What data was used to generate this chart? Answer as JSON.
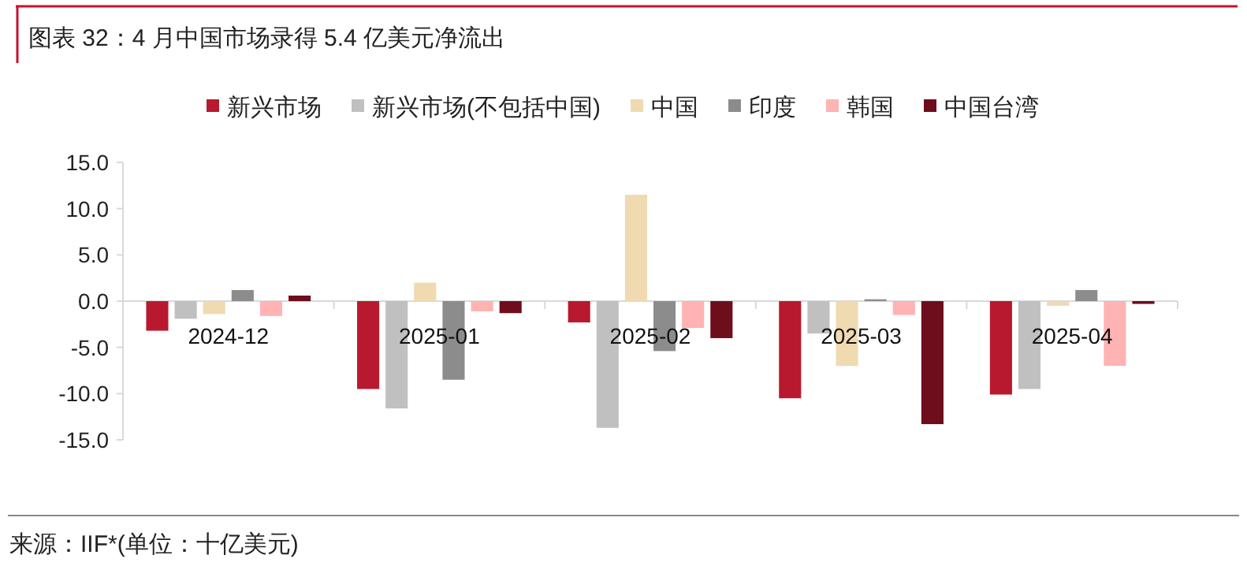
{
  "chart_data": {
    "type": "bar",
    "title": "图表 32：4 月中国市场录得 5.4 亿美元净流出",
    "categories": [
      "2024-12",
      "2025-01",
      "2025-02",
      "2025-03",
      "2025-04"
    ],
    "series": [
      {
        "name": "新兴市场",
        "color": "#b8192e",
        "values": [
          -3.2,
          -9.5,
          -2.3,
          -10.5,
          -10.1
        ]
      },
      {
        "name": "新兴市场(不包括中国)",
        "color": "#c0c0c0",
        "values": [
          -1.9,
          -11.6,
          -13.7,
          -3.5,
          -9.5
        ]
      },
      {
        "name": "中国",
        "color": "#f0dab0",
        "values": [
          -1.4,
          2.0,
          11.5,
          -7.0,
          -0.5
        ]
      },
      {
        "name": "印度",
        "color": "#8c8c8c",
        "values": [
          1.2,
          -8.5,
          -5.4,
          0.2,
          1.2
        ]
      },
      {
        "name": "韩国",
        "color": "#ffb3b3",
        "values": [
          -1.6,
          -1.1,
          -2.9,
          -1.5,
          -7.0
        ]
      },
      {
        "name": "中国台湾",
        "color": "#6e0d1c",
        "values": [
          0.6,
          -1.3,
          -4.0,
          -13.3,
          -0.3
        ]
      }
    ],
    "ylim": [
      -15,
      15
    ],
    "yticks": [
      {
        "value": -15,
        "label": "-15.0"
      },
      {
        "value": -10,
        "label": "-10.0"
      },
      {
        "value": -5,
        "label": "-5.0"
      },
      {
        "value": 0,
        "label": "0.0"
      },
      {
        "value": 5,
        "label": "5.0"
      },
      {
        "value": 10,
        "label": "10.0"
      },
      {
        "value": 15,
        "label": "15.0"
      }
    ],
    "legend": "top",
    "grid": false,
    "annotations": [
      "来源：IIF*(单位：十亿美元)"
    ]
  }
}
